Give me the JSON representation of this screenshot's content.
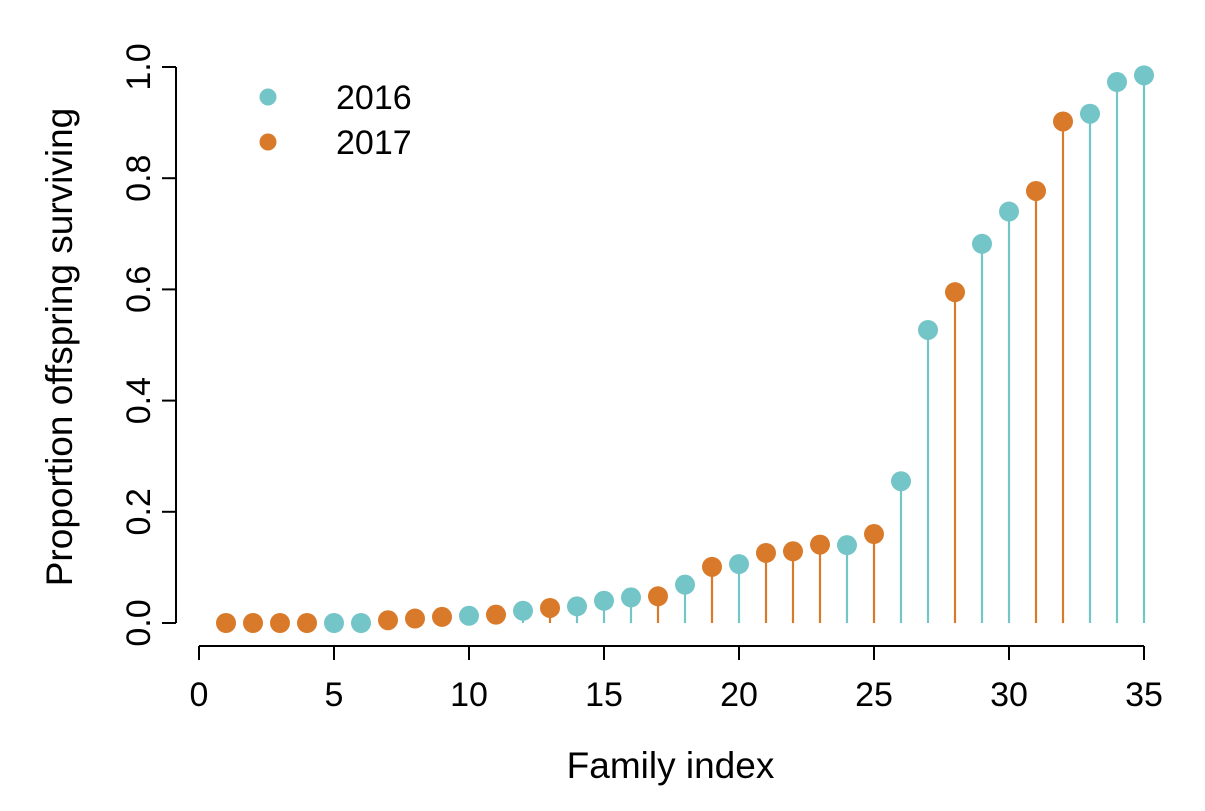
{
  "chart_data": {
    "type": "scatter",
    "style": "lollipop",
    "title": "",
    "xlabel": "Family index",
    "ylabel": "Proportion offspring surviving",
    "xlim": [
      0,
      35
    ],
    "ylim": [
      0,
      1
    ],
    "x_ticks": [
      "0",
      "5",
      "10",
      "15",
      "20",
      "25",
      "30",
      "35"
    ],
    "y_ticks": [
      "0.0",
      "0.2",
      "0.4",
      "0.6",
      "0.8",
      "1.0"
    ],
    "grid": false,
    "legend_position": "top-left",
    "series": [
      {
        "name": "2016",
        "color": "#74C5C8",
        "x": [
          5,
          6,
          10,
          12,
          14,
          15,
          16,
          18,
          20,
          24,
          26,
          27,
          29,
          30,
          33,
          34,
          35
        ],
        "values": [
          0.0,
          0.0,
          0.013,
          0.022,
          0.03,
          0.04,
          0.046,
          0.069,
          0.106,
          0.14,
          0.255,
          0.527,
          0.682,
          0.74,
          0.916,
          0.973,
          0.985
        ]
      },
      {
        "name": "2017",
        "color": "#D97A2A",
        "x": [
          1,
          2,
          3,
          4,
          7,
          8,
          9,
          11,
          13,
          17,
          19,
          21,
          22,
          23,
          25,
          28,
          31,
          32
        ],
        "values": [
          0.0,
          0.0,
          0.0,
          0.0,
          0.005,
          0.008,
          0.011,
          0.015,
          0.027,
          0.048,
          0.101,
          0.126,
          0.129,
          0.141,
          0.16,
          0.595,
          0.777,
          0.902
        ]
      }
    ]
  }
}
